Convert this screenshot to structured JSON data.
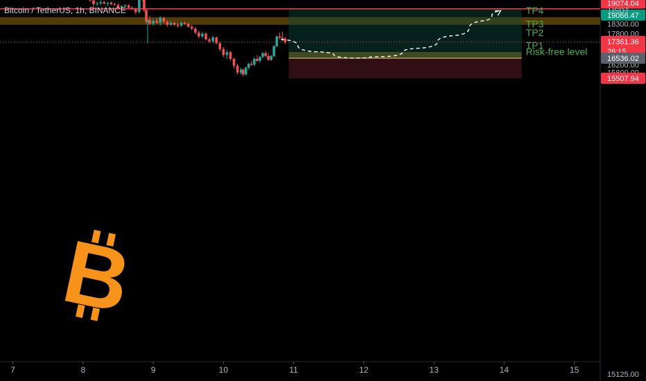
{
  "header": {
    "title": "Bitcoin / TetherUS, 1h, BINANCE"
  },
  "currency": "USDT",
  "logo_icon": "bitcoin-logo-icon",
  "colors": {
    "up": "#26a69a",
    "down": "#ef5350",
    "resistance": "#ff3b4a",
    "zone": "#6b4e0b",
    "tp_text": "#4caf50",
    "profit_zone": "#0b2a25",
    "loss_zone": "#2c0f12",
    "entry_line": "#e6d27a",
    "logo": "#f7931a",
    "axis_text": "#b2b5be"
  },
  "chart_data": {
    "type": "candlestick",
    "ylim": [
      15125,
      19900
    ],
    "y_ticks": [
      "19600.00",
      "18800.00",
      "18300.00",
      "17800.00",
      "17000.00",
      "16600.00",
      "16200.00",
      "15800.00",
      "15125.00"
    ],
    "x_ticks": [
      "7",
      "8",
      "9",
      "10",
      "11",
      "12",
      "13",
      "14",
      "15"
    ],
    "resistance_level": 19066.47,
    "supply_zone": [
      18250,
      18640
    ],
    "entry_price": 16536.02,
    "stop_loss": 15507.94,
    "position": {
      "entry": 16536.02,
      "target": 19066.47,
      "stop": 15507.94,
      "start_day": 10.93,
      "end_day": 14.25
    },
    "projection": [
      [
        10.82,
        17500
      ],
      [
        11.3,
        16870
      ],
      [
        11.85,
        16540
      ],
      [
        12.3,
        16620
      ],
      [
        12.8,
        17050
      ],
      [
        13.3,
        17700
      ],
      [
        13.7,
        18450
      ],
      [
        13.95,
        18970
      ]
    ],
    "targets": [
      {
        "label": "TP4",
        "price": 18980
      },
      {
        "label": "TP3",
        "price": 18300
      },
      {
        "label": "TP2",
        "price": 17850
      },
      {
        "label": "TP1",
        "price": 17200
      },
      {
        "label": "Risk-free level",
        "price": 16880
      }
    ],
    "price_labels": [
      {
        "value": "19074.04",
        "price": 19074.04,
        "bg": "#f23645",
        "fg": "#ffffff"
      },
      {
        "value": "19066.47",
        "price": 19066.47,
        "bg": "#089981",
        "fg": "#ffffff"
      },
      {
        "value": "17361.36",
        "sub": "26:15",
        "price": 17361.36,
        "bg": "#f23645",
        "fg": "#ffffff"
      },
      {
        "value": "16536.02",
        "price": 16536.02,
        "bg": "#5d606b",
        "fg": "#ffffff"
      },
      {
        "value": "15507.94",
        "price": 15507.94,
        "bg": "#f23645",
        "fg": "#ffffff"
      }
    ],
    "current_price": 17361.36,
    "candles": [
      [
        8.05,
        19750,
        20050,
        19600,
        19900
      ],
      [
        8.1,
        19900,
        19950,
        19420,
        19500
      ],
      [
        8.15,
        19500,
        19650,
        19100,
        19300
      ],
      [
        8.2,
        19300,
        19450,
        19200,
        19350
      ],
      [
        8.25,
        19350,
        19500,
        19250,
        19420
      ],
      [
        8.3,
        19420,
        19480,
        19300,
        19330
      ],
      [
        8.35,
        19330,
        19420,
        19180,
        19380
      ],
      [
        8.4,
        19380,
        19450,
        19260,
        19300
      ],
      [
        8.45,
        19300,
        19380,
        19230,
        19260
      ],
      [
        8.5,
        19260,
        19350,
        19050,
        19120
      ],
      [
        8.55,
        19120,
        19250,
        19000,
        19200
      ],
      [
        8.6,
        19200,
        19300,
        19150,
        19250
      ],
      [
        8.65,
        19250,
        19280,
        19100,
        19120
      ],
      [
        8.7,
        19120,
        19200,
        19000,
        19050
      ],
      [
        8.75,
        19050,
        19120,
        18800,
        18900
      ],
      [
        8.8,
        18900,
        19700,
        18850,
        19600
      ],
      [
        8.85,
        19600,
        19850,
        19450,
        19700
      ],
      [
        8.87,
        19700,
        19750,
        18900,
        19000
      ],
      [
        8.9,
        19000,
        19100,
        18300,
        18400
      ],
      [
        8.92,
        18400,
        18500,
        17300,
        18500
      ],
      [
        8.95,
        18500,
        18700,
        18250,
        18300
      ],
      [
        9.0,
        18300,
        18550,
        18200,
        18450
      ],
      [
        9.05,
        18450,
        18600,
        18300,
        18350
      ],
      [
        9.1,
        18350,
        18700,
        18200,
        18600
      ],
      [
        9.15,
        18600,
        18650,
        18300,
        18400
      ],
      [
        9.2,
        18400,
        18500,
        18150,
        18250
      ],
      [
        9.25,
        18250,
        18450,
        18200,
        18350
      ],
      [
        9.3,
        18350,
        18400,
        18200,
        18250
      ],
      [
        9.35,
        18250,
        18350,
        18100,
        18200
      ],
      [
        9.4,
        18200,
        18400,
        18150,
        18350
      ],
      [
        9.45,
        18350,
        18420,
        18250,
        18300
      ],
      [
        9.5,
        18300,
        18350,
        18100,
        18150
      ],
      [
        9.55,
        18150,
        18250,
        17950,
        18050
      ],
      [
        9.6,
        18050,
        18150,
        17750,
        17850
      ],
      [
        9.65,
        17850,
        17950,
        17550,
        17650
      ],
      [
        9.7,
        17650,
        17900,
        17550,
        17800
      ],
      [
        9.75,
        17800,
        17850,
        17450,
        17500
      ],
      [
        9.8,
        17500,
        17600,
        17300,
        17400
      ],
      [
        9.85,
        17400,
        17700,
        17300,
        17600
      ],
      [
        9.9,
        17600,
        17650,
        17250,
        17300
      ],
      [
        9.95,
        17300,
        17400,
        16900,
        17000
      ],
      [
        10.0,
        17000,
        17100,
        16600,
        16700
      ],
      [
        10.05,
        16700,
        16950,
        16500,
        16850
      ],
      [
        10.1,
        16850,
        16900,
        16400,
        16500
      ],
      [
        10.15,
        16500,
        16550,
        16000,
        16150
      ],
      [
        10.2,
        16150,
        16250,
        15700,
        15800
      ],
      [
        10.25,
        15800,
        16050,
        15700,
        15950
      ],
      [
        10.28,
        15950,
        16000,
        15600,
        15700
      ],
      [
        10.32,
        15700,
        16100,
        15650,
        16050
      ],
      [
        10.36,
        16050,
        16300,
        15950,
        16250
      ],
      [
        10.4,
        16250,
        16400,
        16150,
        16200
      ],
      [
        10.44,
        16200,
        16600,
        16150,
        16500
      ],
      [
        10.48,
        16500,
        16700,
        16350,
        16400
      ],
      [
        10.52,
        16400,
        16650,
        16300,
        16600
      ],
      [
        10.56,
        16600,
        16850,
        16550,
        16800
      ],
      [
        10.6,
        16800,
        16900,
        16600,
        16650
      ],
      [
        10.64,
        16650,
        16800,
        16400,
        16450
      ],
      [
        10.68,
        16450,
        16700,
        16400,
        16650
      ],
      [
        10.72,
        16650,
        17200,
        16600,
        17150
      ],
      [
        10.76,
        17150,
        17700,
        17100,
        17650
      ],
      [
        10.8,
        17650,
        17850,
        17500,
        17600
      ],
      [
        10.84,
        17600,
        17900,
        17400,
        17550
      ],
      [
        10.88,
        17550,
        17600,
        17250,
        17361.36
      ]
    ]
  }
}
